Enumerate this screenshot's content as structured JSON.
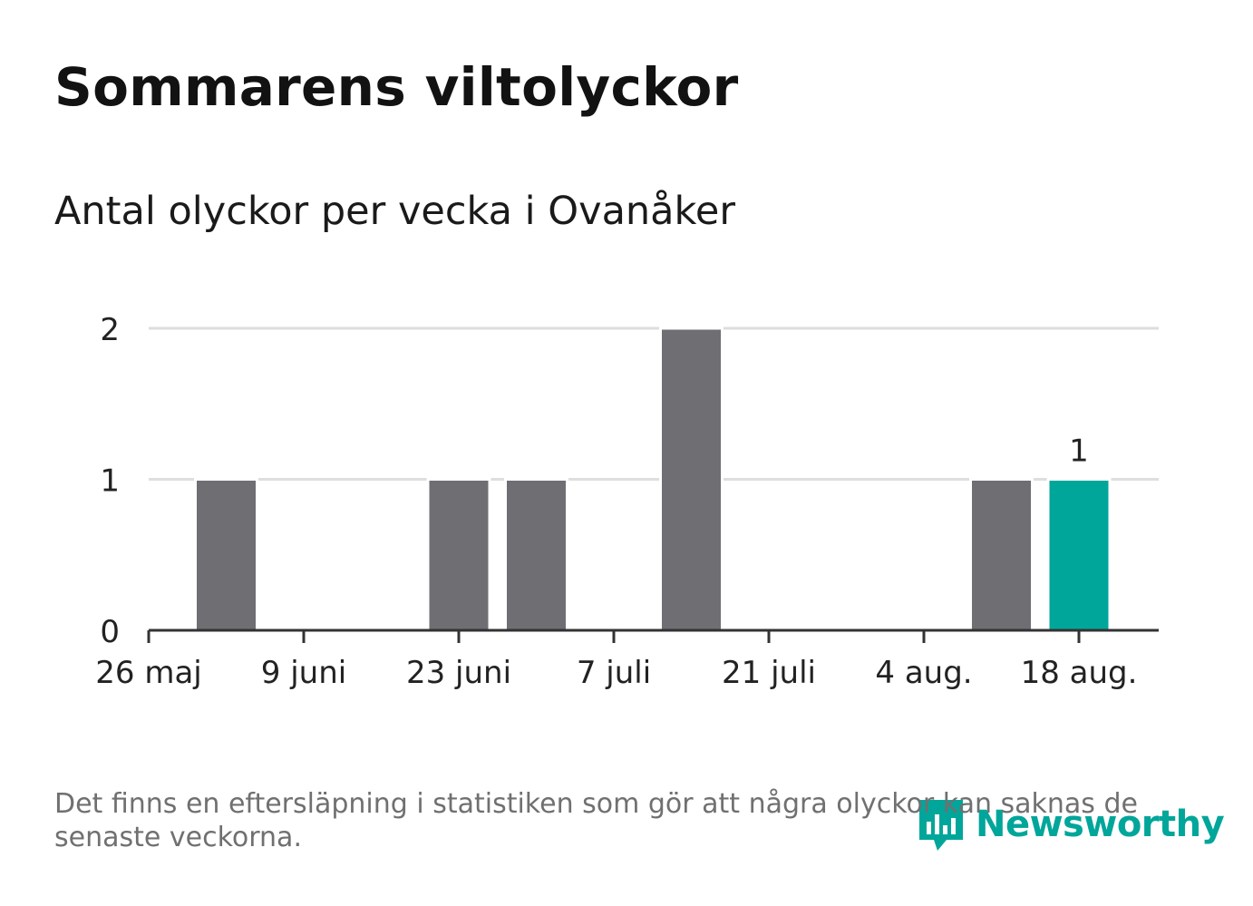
{
  "title": "Sommarens viltolyckor",
  "subtitle": "Antal olyckor per vecka i Ovanåker",
  "footnote": "Det finns en eftersläpning i statistiken som gör att några olyckor kan saknas de senaste veckorna.",
  "logo": {
    "text": "Newsworthy",
    "icon": "bar-chart-speech-bubble-icon"
  },
  "colors": {
    "bar": "#6f6e73",
    "highlight": "#00a69a",
    "grid": "#dedede",
    "axis": "#333333",
    "text": "#222222"
  },
  "chart_data": {
    "type": "bar",
    "x": [
      "2024-06-02",
      "2024-06-09",
      "2024-06-16",
      "2024-06-23",
      "2024-06-30",
      "2024-07-07",
      "2024-07-14",
      "2024-07-21",
      "2024-07-28",
      "2024-08-04",
      "2024-08-11",
      "2024-08-18"
    ],
    "values": [
      1,
      0,
      0,
      1,
      1,
      0,
      2,
      0,
      0,
      0,
      1,
      1
    ],
    "highlight_index": 11,
    "data_labels": [
      {
        "index": 11,
        "text": "1"
      }
    ],
    "x_ticks": [
      "26 maj",
      "9 juni",
      "23 juni",
      "7 juli",
      "21 juli",
      "4 aug.",
      "18 aug."
    ],
    "y_ticks": [
      "0",
      "1",
      "2"
    ],
    "ylim": [
      0,
      2
    ],
    "grid": true
  }
}
